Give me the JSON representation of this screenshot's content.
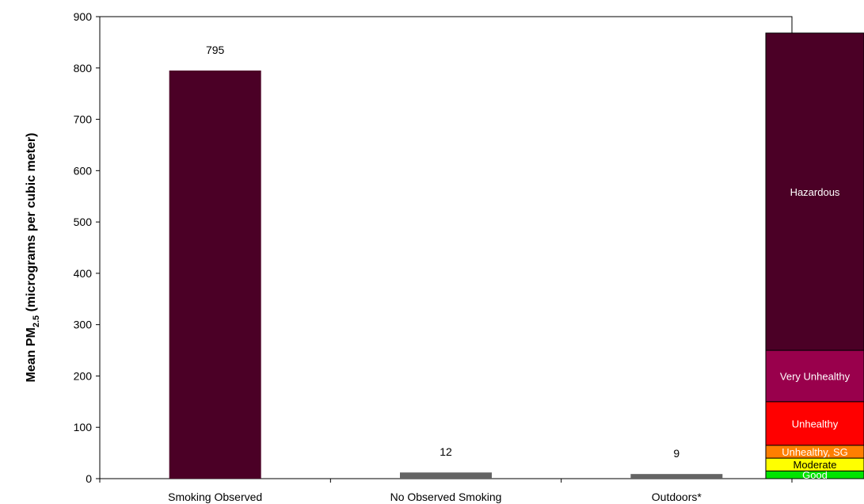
{
  "chart_data": {
    "type": "bar",
    "categories": [
      "Smoking Observed",
      "No Observed Smoking",
      "Outdoors*"
    ],
    "values": [
      795,
      12,
      9
    ],
    "data_labels": [
      "795",
      "12",
      "9"
    ],
    "ylabel": {
      "main": "Mean PM",
      "subscript": "2.5",
      "suffix": " (micrograms per cubic meter)"
    },
    "ylim": [
      0,
      900
    ],
    "yticks": [
      0,
      100,
      200,
      300,
      400,
      500,
      600,
      700,
      800,
      900
    ],
    "grid": false,
    "bar_colors": [
      "#4b0026",
      "#646464",
      "#646464"
    ],
    "aqi_bands": [
      {
        "label": "Good",
        "from": 0,
        "to": 15,
        "color": "#00e400",
        "text_color": "#ffffff"
      },
      {
        "label": "Moderate",
        "from": 15,
        "to": 40,
        "color": "#ffff00",
        "text_color": "#000000"
      },
      {
        "label": "Unhealthy, SG",
        "from": 40,
        "to": 65,
        "color": "#ff7e00",
        "text_color": "#ffffff"
      },
      {
        "label": "Unhealthy",
        "from": 65,
        "to": 150,
        "color": "#ff0000",
        "text_color": "#ffffff"
      },
      {
        "label": "Very Unhealthy",
        "from": 150,
        "to": 250,
        "color": "#99004c",
        "text_color": "#ffffff"
      },
      {
        "label": "Hazardous",
        "from": 250,
        "to": 868,
        "color": "#4b0026",
        "text_color": "#ffffff"
      }
    ]
  }
}
